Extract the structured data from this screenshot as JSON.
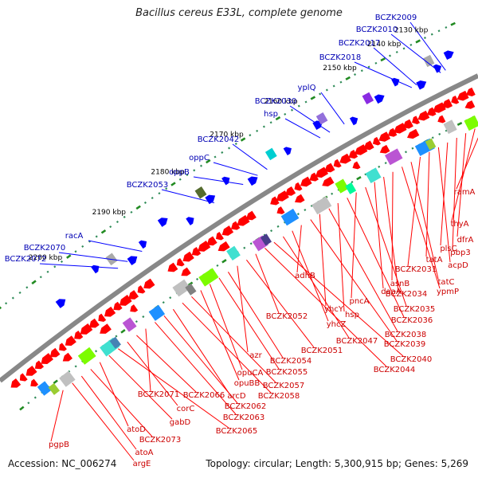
{
  "title": "Bacillus cereus E33L, complete genome",
  "footer": {
    "accession": "Accession: NC_006274",
    "summary": "Topology: circular; Length: 5,300,915 bp; Genes: 5,269"
  },
  "colors": {
    "backbone": "#888888",
    "forward_gene": "#0000ff",
    "reverse_gene": "#ff0000",
    "tick_major": "#228b22",
    "tick_minor": "#2e8b57",
    "label_forward": "#0000b4",
    "label_reverse": "#cc0000"
  },
  "ruler_labels": [
    "2130 kbp",
    "2140 kbp",
    "2150 kbp",
    "2160 kbp",
    "2170 kbp",
    "2180 kbp",
    "2190 kbp",
    "2200 kbp"
  ],
  "forward_labels": [
    "BCZK2009",
    "BCZK2010",
    "BCZK2017",
    "BCZK2018",
    "yplQ",
    "BCZK2030",
    "hsp",
    "BCZK2042",
    "oppC",
    "oppB",
    "BCZK2053",
    "racA",
    "BCZK2070",
    "BCZK2072"
  ],
  "reverse_labels": [
    "ramA",
    "thyA",
    "dfrA",
    "pbp3",
    "plsC",
    "acpD",
    "tatA",
    "BCZK2031",
    "tatC",
    "ypmP",
    "asnB",
    "BCZK2034",
    "daaA",
    "BCZK2035",
    "pncA",
    "BCZK2036",
    "hsp",
    "BCZK2038",
    "yhcY",
    "BCZK2039",
    "adhB",
    "yhcZ",
    "BCZK2047",
    "BCZK2040",
    "BCZK2044",
    "BCZK2052",
    "BCZK2051",
    "azr",
    "BCZK2054",
    "BCZK2055",
    "opuCA",
    "opuBB",
    "BCZK2057",
    "BCZK2058",
    "arcD",
    "BCZK2062",
    "BCZK2063",
    "BCZK2071",
    "BCZK2066",
    "corC",
    "BCZK2065",
    "gabD",
    "atoD",
    "BCZK2073",
    "atoA",
    "argE",
    "pgpB"
  ]
}
